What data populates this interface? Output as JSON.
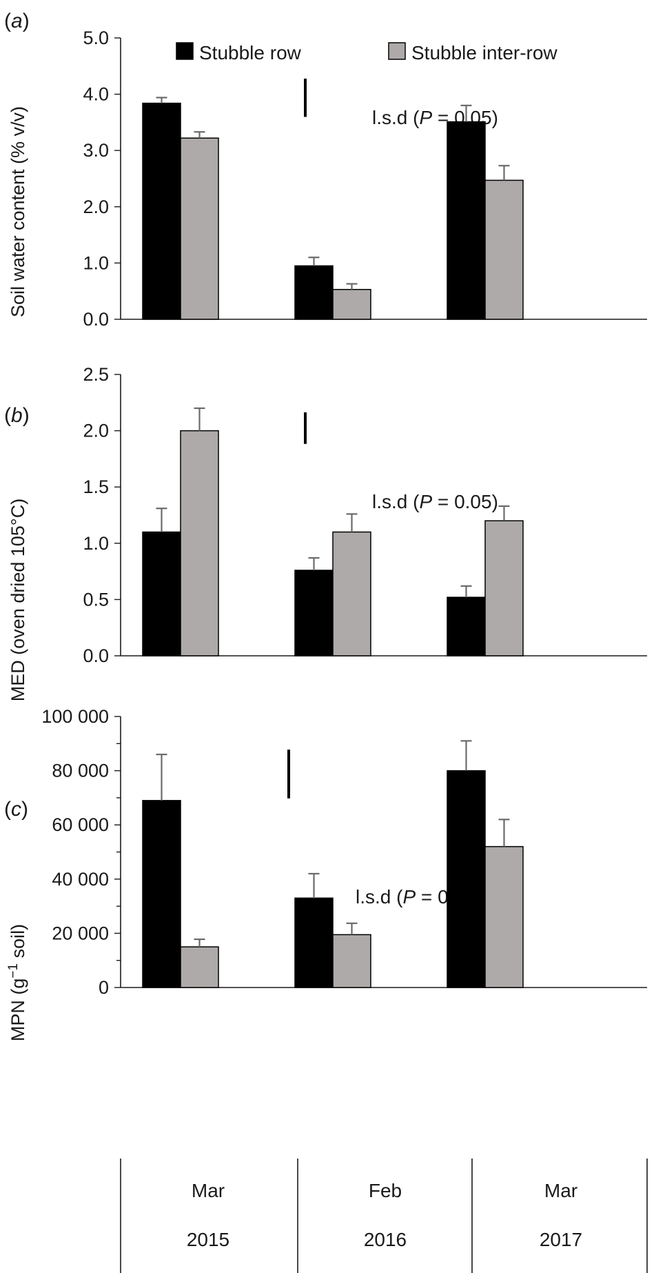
{
  "colors": {
    "series_row": "#000000",
    "series_inter": "#aeaaa9",
    "error_bar": "#6a6a6a"
  },
  "legend": {
    "items": [
      {
        "label": "Stubble row",
        "color": "#000000"
      },
      {
        "label": "Stubble inter-row",
        "color": "#aeaaa9"
      }
    ],
    "placement": "top"
  },
  "x_axis": {
    "months": [
      "Mar",
      "Feb",
      "Mar"
    ],
    "years": [
      "2015",
      "2016",
      "2017"
    ]
  },
  "lsd": {
    "prefix": "l.s.d (",
    "p_symbol": "P",
    "suffix": " = 0.05)"
  },
  "panels": [
    {
      "letter_open": "(",
      "letter": "a",
      "letter_close": ")",
      "ylabel": "Soil water content (% v/v)",
      "yticks": [
        "0.0",
        "1.0",
        "2.0",
        "3.0",
        "4.0",
        "5.0"
      ]
    },
    {
      "letter_open": "(",
      "letter": "b",
      "letter_close": ")",
      "ylabel": "MED (oven dried 105°C)",
      "yticks": [
        "0.0",
        "0.5",
        "1.0",
        "1.5",
        "2.0",
        "2.5"
      ]
    },
    {
      "letter_open": "(",
      "letter": "c",
      "letter_close": ")",
      "ylabel_main": "MPN (g",
      "ylabel_sup": "−1",
      "ylabel_end": " soil)",
      "yticks": [
        "0",
        "20 000",
        "40 000",
        "60 000",
        "80 000",
        "100 000"
      ]
    }
  ],
  "chart_data": [
    {
      "type": "bar",
      "panel": "a",
      "categories": [
        "Mar 2015",
        "Feb 2016",
        "Mar 2017"
      ],
      "ylabel": "Soil water content (% v/v)",
      "ylim": [
        0,
        5.0
      ],
      "grid": false,
      "series": [
        {
          "name": "Stubble row",
          "values": [
            3.84,
            0.95,
            3.51
          ],
          "errors": [
            0.1,
            0.15,
            0.29
          ]
        },
        {
          "name": "Stubble inter-row",
          "values": [
            3.22,
            0.53,
            2.47
          ],
          "errors": [
            0.11,
            0.1,
            0.26
          ]
        }
      ],
      "lsd_length": 0.68
    },
    {
      "type": "bar",
      "panel": "b",
      "categories": [
        "Mar 2015",
        "Feb 2016",
        "Mar 2017"
      ],
      "ylabel": "MED (oven dried 105°C)",
      "ylim": [
        0,
        2.5
      ],
      "grid": false,
      "series": [
        {
          "name": "Stubble row",
          "values": [
            1.1,
            0.76,
            0.52
          ],
          "errors": [
            0.21,
            0.11,
            0.1
          ]
        },
        {
          "name": "Stubble inter-row",
          "values": [
            2.0,
            1.1,
            1.2
          ],
          "errors": [
            0.2,
            0.16,
            0.13
          ]
        }
      ],
      "lsd_length": 0.28
    },
    {
      "type": "bar",
      "panel": "c",
      "categories": [
        "Mar 2015",
        "Feb 2016",
        "Mar 2017"
      ],
      "ylabel": "MPN (g−1 soil)",
      "ylim": [
        0,
        100000
      ],
      "grid": false,
      "series": [
        {
          "name": "Stubble row",
          "values": [
            69000,
            33000,
            80000
          ],
          "errors": [
            17000,
            9000,
            11000
          ]
        },
        {
          "name": "Stubble inter-row",
          "values": [
            15000,
            19500,
            52000
          ],
          "errors": [
            2800,
            4200,
            10000
          ]
        }
      ],
      "lsd_length": 18000
    }
  ]
}
